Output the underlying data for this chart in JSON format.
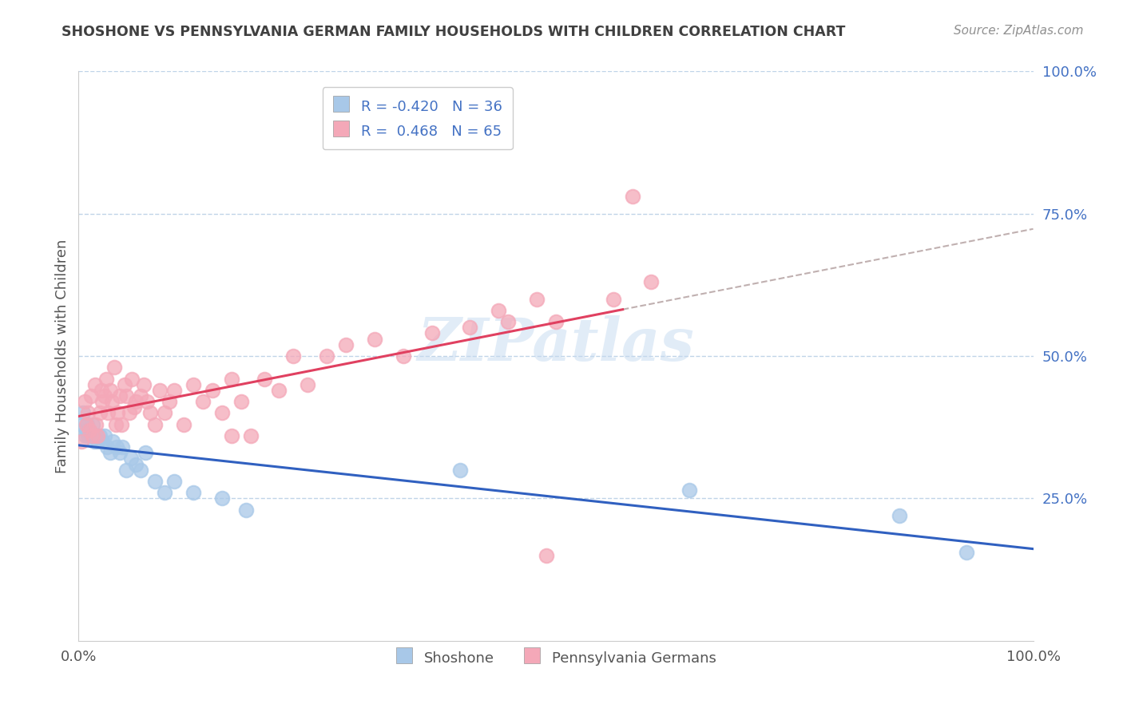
{
  "title": "SHOSHONE VS PENNSYLVANIA GERMAN FAMILY HOUSEHOLDS WITH CHILDREN CORRELATION CHART",
  "source": "Source: ZipAtlas.com",
  "ylabel": "Family Households with Children",
  "legend_shoshone_R": "-0.420",
  "legend_shoshone_N": "36",
  "legend_pa_german_R": "0.468",
  "legend_pa_german_N": "65",
  "legend_label_shoshone": "Shoshone",
  "legend_label_pa": "Pennsylvania Germans",
  "watermark": "ZIPatlas",
  "shoshone_color": "#a8c8e8",
  "pa_german_color": "#f4a8b8",
  "shoshone_line_color": "#3060c0",
  "pa_german_line_color": "#e04060",
  "grid_color": "#c0d4e8",
  "background_color": "#ffffff",
  "title_color": "#404040",
  "ytick_color": "#4472c4",
  "source_color": "#909090",
  "shoshone_x": [
    0.003,
    0.005,
    0.007,
    0.008,
    0.009,
    0.01,
    0.011,
    0.013,
    0.015,
    0.016,
    0.018,
    0.02,
    0.022,
    0.025,
    0.027,
    0.03,
    0.033,
    0.036,
    0.04,
    0.043,
    0.046,
    0.05,
    0.055,
    0.06,
    0.065,
    0.07,
    0.08,
    0.09,
    0.1,
    0.12,
    0.15,
    0.175,
    0.4,
    0.64,
    0.86,
    0.93
  ],
  "shoshone_y": [
    0.38,
    0.4,
    0.36,
    0.37,
    0.38,
    0.36,
    0.37,
    0.36,
    0.38,
    0.35,
    0.36,
    0.35,
    0.36,
    0.35,
    0.36,
    0.34,
    0.33,
    0.35,
    0.34,
    0.33,
    0.34,
    0.3,
    0.32,
    0.31,
    0.3,
    0.33,
    0.28,
    0.26,
    0.28,
    0.26,
    0.25,
    0.23,
    0.3,
    0.265,
    0.22,
    0.155
  ],
  "pa_german_x": [
    0.003,
    0.006,
    0.008,
    0.01,
    0.011,
    0.013,
    0.015,
    0.017,
    0.018,
    0.02,
    0.022,
    0.024,
    0.025,
    0.027,
    0.029,
    0.031,
    0.033,
    0.035,
    0.037,
    0.039,
    0.041,
    0.043,
    0.045,
    0.048,
    0.05,
    0.053,
    0.056,
    0.058,
    0.06,
    0.065,
    0.068,
    0.072,
    0.075,
    0.08,
    0.085,
    0.09,
    0.095,
    0.1,
    0.11,
    0.12,
    0.13,
    0.14,
    0.15,
    0.16,
    0.17,
    0.18,
    0.195,
    0.21,
    0.225,
    0.24,
    0.26,
    0.28,
    0.31,
    0.34,
    0.37,
    0.41,
    0.45,
    0.5,
    0.56,
    0.16,
    0.44,
    0.48,
    0.6,
    0.58,
    0.49
  ],
  "pa_german_y": [
    0.35,
    0.42,
    0.38,
    0.4,
    0.37,
    0.43,
    0.36,
    0.45,
    0.38,
    0.36,
    0.4,
    0.44,
    0.42,
    0.43,
    0.46,
    0.4,
    0.44,
    0.42,
    0.48,
    0.38,
    0.4,
    0.43,
    0.38,
    0.45,
    0.43,
    0.4,
    0.46,
    0.41,
    0.42,
    0.43,
    0.45,
    0.42,
    0.4,
    0.38,
    0.44,
    0.4,
    0.42,
    0.44,
    0.38,
    0.45,
    0.42,
    0.44,
    0.4,
    0.46,
    0.42,
    0.36,
    0.46,
    0.44,
    0.5,
    0.45,
    0.5,
    0.52,
    0.53,
    0.5,
    0.54,
    0.55,
    0.56,
    0.56,
    0.6,
    0.36,
    0.58,
    0.6,
    0.63,
    0.78,
    0.15
  ],
  "pa_line_solid_end_x": 0.57,
  "ytick_vals": [
    0.25,
    0.5,
    0.75,
    1.0
  ],
  "ytick_labels": [
    "25.0%",
    "50.0%",
    "75.0%",
    "100.0%"
  ],
  "ylim": [
    0,
    1.0
  ],
  "xlim": [
    0,
    1.0
  ]
}
